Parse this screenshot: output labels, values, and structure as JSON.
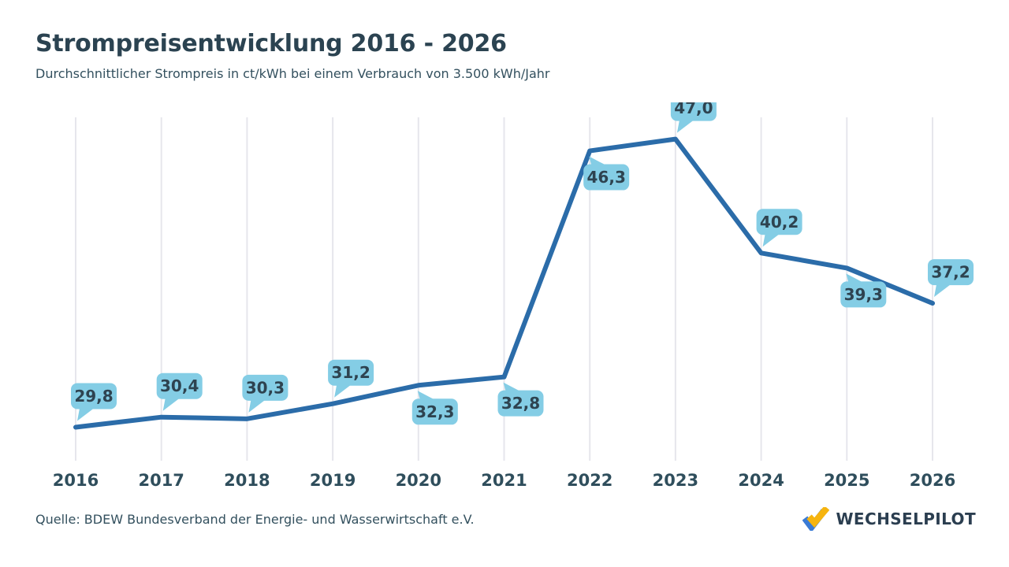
{
  "header": {
    "title": "Strompreisentwicklung 2016 - 2026",
    "subtitle": "Durchschnittlicher Strompreis in ct/kWh bei einem Verbrauch von 3.500 kWh/Jahr"
  },
  "chart_data": {
    "type": "line",
    "title": "Strompreisentwicklung 2016 - 2026",
    "xlabel": "",
    "ylabel": "ct/kWh",
    "categories": [
      "2016",
      "2017",
      "2018",
      "2019",
      "2020",
      "2021",
      "2022",
      "2023",
      "2024",
      "2025",
      "2026"
    ],
    "values": [
      29.8,
      30.4,
      30.3,
      31.2,
      32.3,
      32.8,
      46.3,
      47.0,
      40.2,
      39.3,
      37.2
    ],
    "labels": [
      "29,8",
      "30,4",
      "30,3",
      "31,2",
      "32,3",
      "32,8",
      "46,3",
      "47,0",
      "40,2",
      "39,3",
      "37,2"
    ],
    "label_positions": [
      "above",
      "above",
      "above",
      "above",
      "below",
      "below",
      "below",
      "above",
      "above",
      "below",
      "above"
    ],
    "ylim": [
      27.8,
      48.3
    ],
    "grid": "vertical-only",
    "legend": "none",
    "line_color": "#2b6ca9",
    "bubble_color": "#84cde5",
    "label_text_color": "#2e4350",
    "grid_color": "#e6e6ec",
    "axis_text_color": "#2f4e5c"
  },
  "footer": {
    "source": "Quelle: BDEW Bundesverband der Energie- und Wasserwirtschaft e.V.",
    "logo_text": "WECHSELPILOT",
    "logo_colors": {
      "check_blue": "#3a7bd5",
      "check_yellow": "#f6b40e"
    }
  }
}
